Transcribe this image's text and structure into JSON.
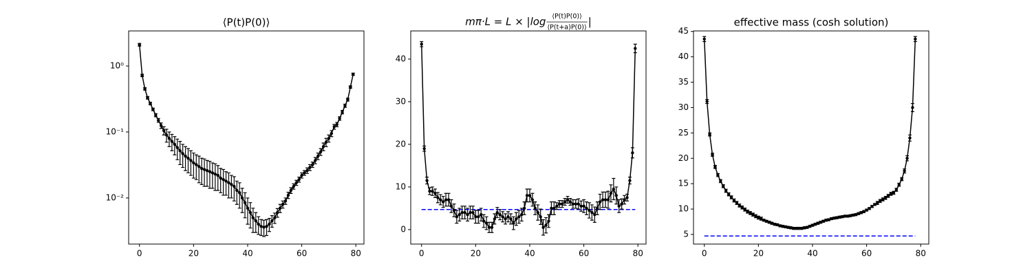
{
  "chart_data": [
    {
      "type": "line",
      "title": "⟨P(t)P(0)⟩",
      "color": "#000000",
      "yscale": "log",
      "xlim": [
        -4,
        83
      ],
      "xticks": [
        0,
        20,
        40,
        60,
        80
      ],
      "ylim": [
        0.002,
        3.4
      ],
      "yticks": [
        {
          "value": 1,
          "label": "10⁰"
        },
        {
          "value": 0.1,
          "label": "10⁻¹"
        },
        {
          "value": 0.01,
          "label": "10⁻²"
        }
      ],
      "x": [
        0,
        1,
        2,
        3,
        4,
        5,
        6,
        7,
        8,
        9,
        10,
        11,
        12,
        13,
        14,
        15,
        16,
        17,
        18,
        19,
        20,
        21,
        22,
        23,
        24,
        25,
        26,
        27,
        28,
        29,
        30,
        31,
        32,
        33,
        34,
        35,
        36,
        37,
        38,
        39,
        40,
        41,
        42,
        43,
        44,
        45,
        46,
        47,
        48,
        49,
        50,
        51,
        52,
        53,
        54,
        55,
        56,
        57,
        58,
        59,
        60,
        61,
        62,
        63,
        64,
        65,
        66,
        67,
        68,
        69,
        70,
        71,
        72,
        73,
        74,
        75,
        76,
        77,
        78,
        79
      ],
      "values": [
        2.1,
        0.72,
        0.45,
        0.33,
        0.27,
        0.22,
        0.18,
        0.15,
        0.125,
        0.105,
        0.09,
        0.08,
        0.072,
        0.065,
        0.058,
        0.052,
        0.047,
        0.043,
        0.04,
        0.037,
        0.034,
        0.032,
        0.03,
        0.028,
        0.027,
        0.026,
        0.025,
        0.024,
        0.023,
        0.022,
        0.02,
        0.019,
        0.018,
        0.017,
        0.016,
        0.015,
        0.013,
        0.012,
        0.01,
        0.0085,
        0.007,
        0.006,
        0.005,
        0.0045,
        0.004,
        0.0037,
        0.0036,
        0.0037,
        0.004,
        0.0045,
        0.005,
        0.006,
        0.007,
        0.008,
        0.009,
        0.011,
        0.013,
        0.015,
        0.017,
        0.019,
        0.022,
        0.024,
        0.026,
        0.029,
        0.032,
        0.037,
        0.043,
        0.05,
        0.06,
        0.07,
        0.08,
        0.095,
        0.12,
        0.13,
        0.16,
        0.2,
        0.25,
        0.31,
        0.48,
        0.75
      ],
      "errors": [
        0.1,
        0.03,
        0.02,
        0.015,
        0.012,
        0.01,
        0.01,
        0.01,
        0.012,
        0.015,
        0.02,
        0.02,
        0.02,
        0.02,
        0.02,
        0.02,
        0.018,
        0.017,
        0.016,
        0.015,
        0.014,
        0.013,
        0.013,
        0.012,
        0.012,
        0.011,
        0.011,
        0.01,
        0.01,
        0.009,
        0.008,
        0.008,
        0.007,
        0.007,
        0.006,
        0.006,
        0.005,
        0.005,
        0.004,
        0.0035,
        0.003,
        0.0025,
        0.002,
        0.0015,
        0.0012,
        0.001,
        0.001,
        0.001,
        0.0009,
        0.0009,
        0.0009,
        0.0009,
        0.001,
        0.001,
        0.001,
        0.0012,
        0.0013,
        0.0014,
        0.0015,
        0.0017,
        0.002,
        0.002,
        0.0025,
        0.003,
        0.003,
        0.004,
        0.005,
        0.006,
        0.008,
        0.01,
        0.01,
        0.01,
        0.01,
        0.01,
        0.01,
        0.012,
        0.014,
        0.016,
        0.02,
        0.03
      ]
    },
    {
      "type": "line",
      "title": {
        "prefix": "mπ·L = L × |log",
        "numerator": "⟨P(t)P(0)⟩",
        "denominator": "⟨P(t+a)P(0)⟩",
        "suffix": "|"
      },
      "color": "#000000",
      "xlim": [
        -4,
        83
      ],
      "xticks": [
        0,
        20,
        40,
        60,
        80
      ],
      "ylim": [
        -3.4,
        46.6
      ],
      "yticks": [
        0,
        10,
        20,
        30,
        40
      ],
      "hline": {
        "y": 4.7,
        "x": [
          0,
          79
        ],
        "color": "#0000ff"
      },
      "x": [
        0,
        1,
        2,
        3,
        4,
        5,
        6,
        7,
        8,
        9,
        10,
        11,
        12,
        13,
        14,
        15,
        16,
        17,
        18,
        19,
        20,
        21,
        22,
        23,
        24,
        25,
        26,
        27,
        28,
        29,
        30,
        31,
        32,
        33,
        34,
        35,
        36,
        37,
        38,
        39,
        40,
        41,
        42,
        43,
        44,
        45,
        46,
        47,
        48,
        49,
        50,
        51,
        52,
        53,
        54,
        55,
        56,
        57,
        58,
        59,
        60,
        61,
        62,
        63,
        64,
        65,
        66,
        67,
        68,
        69,
        70,
        71,
        72,
        73,
        74,
        75,
        76,
        77,
        78,
        79
      ],
      "values": [
        43.5,
        19,
        11.5,
        9,
        9,
        8.5,
        7.5,
        7,
        6.5,
        7,
        7,
        5.5,
        4.5,
        3,
        3.5,
        4,
        4,
        3.5,
        4,
        4,
        3,
        3,
        3.5,
        2,
        1.5,
        0.5,
        0.5,
        2.5,
        4,
        3.5,
        3,
        2.5,
        3,
        2.5,
        1.5,
        2.5,
        3,
        3.5,
        5,
        8,
        8,
        7,
        5,
        4,
        3,
        0.5,
        1,
        2,
        5,
        5,
        5.5,
        6,
        6,
        6.5,
        7,
        6.5,
        6,
        6,
        6,
        5.5,
        5.5,
        5,
        4.5,
        4,
        3.5,
        5,
        6.5,
        7,
        7,
        7,
        8.5,
        9.5,
        8,
        5.5,
        6,
        7,
        7.5,
        11.5,
        18,
        42.5
      ],
      "errors": [
        0.6,
        0.6,
        0.8,
        0.8,
        1,
        1,
        1.2,
        1.2,
        1.3,
        1.5,
        1.5,
        1.5,
        1.5,
        1.5,
        1.5,
        1.5,
        1.5,
        1.5,
        1.5,
        1.5,
        1.5,
        1.5,
        1.5,
        1.5,
        1.5,
        1.2,
        1.2,
        1.2,
        1.2,
        1.2,
        1.2,
        1.2,
        1.2,
        1.2,
        1.5,
        1.5,
        1.5,
        1.5,
        1.5,
        1.5,
        1.5,
        1.5,
        1.5,
        1.8,
        1.8,
        1.8,
        1.8,
        1.5,
        1.5,
        1.5,
        0.8,
        0.8,
        0.8,
        0.8,
        0.8,
        0.8,
        1,
        1,
        1.2,
        1.2,
        1.5,
        1.5,
        1.8,
        1.8,
        1.8,
        1.5,
        1.8,
        1.8,
        1.8,
        2,
        2,
        2.5,
        2,
        1.5,
        1.2,
        1,
        0.8,
        0.8,
        1.2,
        1
      ]
    },
    {
      "type": "line",
      "title": "effective mass (cosh solution)",
      "color": "#000000",
      "xlim": [
        -4,
        83
      ],
      "xticks": [
        0,
        20,
        40,
        60,
        80
      ],
      "ylim": [
        3.1,
        45.1
      ],
      "yticks": [
        5,
        10,
        15,
        20,
        25,
        30,
        35,
        40,
        45
      ],
      "hline": {
        "y": 4.7,
        "x": [
          0,
          78
        ],
        "color": "#0000ff"
      },
      "x": [
        0,
        1,
        2,
        3,
        4,
        5,
        6,
        7,
        8,
        9,
        10,
        11,
        12,
        13,
        14,
        15,
        16,
        17,
        18,
        19,
        20,
        21,
        22,
        23,
        24,
        25,
        26,
        27,
        28,
        29,
        30,
        31,
        32,
        33,
        34,
        35,
        36,
        37,
        38,
        39,
        40,
        41,
        42,
        43,
        44,
        45,
        46,
        47,
        48,
        49,
        50,
        51,
        52,
        53,
        54,
        55,
        56,
        57,
        58,
        59,
        60,
        61,
        62,
        63,
        64,
        65,
        66,
        67,
        68,
        69,
        70,
        71,
        72,
        73,
        74,
        75,
        76,
        77,
        78
      ],
      "values": [
        43.5,
        31.2,
        24.7,
        20.7,
        18.3,
        16.7,
        15.5,
        14.5,
        13.6,
        12.9,
        12.3,
        11.7,
        11.2,
        10.7,
        10.3,
        9.9,
        9.5,
        9.2,
        8.9,
        8.6,
        8.3,
        8.1,
        7.8,
        7.6,
        7.4,
        7.2,
        7,
        6.9,
        6.7,
        6.6,
        6.5,
        6.4,
        6.3,
        6.2,
        6.2,
        6.2,
        6.2,
        6.3,
        6.4,
        6.6,
        6.8,
        7,
        7.2,
        7.4,
        7.6,
        7.8,
        7.9,
        8.1,
        8.2,
        8.3,
        8.4,
        8.5,
        8.6,
        8.6,
        8.7,
        8.8,
        8.9,
        9.1,
        9.3,
        9.5,
        9.8,
        10.1,
        10.5,
        10.9,
        11.2,
        11.6,
        11.9,
        12.2,
        12.6,
        13,
        13.2,
        13.8,
        14.8,
        15.9,
        17.5,
        20,
        24,
        30,
        43.5
      ],
      "errors": [
        0.5,
        0.4,
        0.3,
        0.3,
        0.3,
        0.3,
        0.3,
        0.3,
        0.3,
        0.3,
        0.3,
        0.3,
        0.3,
        0.3,
        0.3,
        0.3,
        0.3,
        0.3,
        0.3,
        0.3,
        0.3,
        0.3,
        0.2,
        0.2,
        0.2,
        0.2,
        0.2,
        0.2,
        0.2,
        0.2,
        0.2,
        0.2,
        0.2,
        0.2,
        0.2,
        0.2,
        0.2,
        0.2,
        0.2,
        0.2,
        0.2,
        0.2,
        0.2,
        0.2,
        0.2,
        0.2,
        0.2,
        0.2,
        0.2,
        0.2,
        0.2,
        0.2,
        0.2,
        0.2,
        0.2,
        0.2,
        0.2,
        0.2,
        0.2,
        0.2,
        0.2,
        0.2,
        0.2,
        0.2,
        0.3,
        0.3,
        0.3,
        0.3,
        0.3,
        0.3,
        0.3,
        0.3,
        0.3,
        0.3,
        0.4,
        0.5,
        0.6,
        0.8,
        0.5
      ]
    }
  ]
}
